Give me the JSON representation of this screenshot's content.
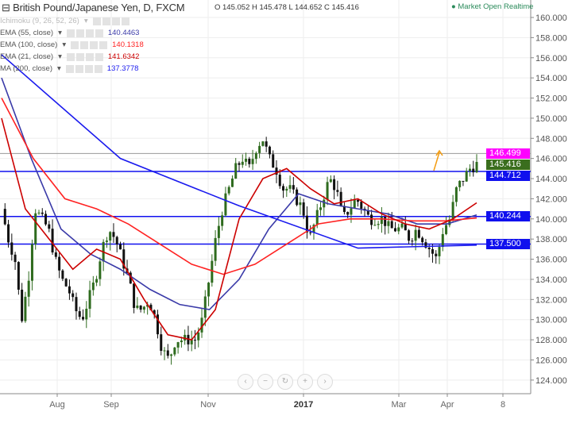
{
  "header": {
    "title": "British Pound/Japanese Yen, D, FXCM",
    "ohlc": "O 145.052 H 145.478 L 144.652 C 145.416",
    "status": "Market Open",
    "realtime": "Realtime"
  },
  "legend": [
    {
      "label": "Ichimoku (9, 26, 52, 26)",
      "value": "",
      "color": "#bbbbbb"
    },
    {
      "label": "EMA (55, close)",
      "value": "140.4463",
      "color": "#3a3aa8"
    },
    {
      "label": "EMA (100, close)",
      "value": "140.1318",
      "color": "#ff2222"
    },
    {
      "label": "EMA (21, close)",
      "value": "141.6342",
      "color": "#cc0000"
    },
    {
      "label": "MA (200, close)",
      "value": "137.3778",
      "color": "#1a1aee"
    }
  ],
  "nav_buttons": [
    "‹",
    "−",
    "↻",
    "+",
    "›"
  ],
  "price_tags": [
    {
      "value": "146.499",
      "price": 146.499,
      "bg": "#ff00ff",
      "line": "#999999"
    },
    {
      "value": "145.416",
      "price": 145.416,
      "bg": "#3a6e1e",
      "line": null
    },
    {
      "value": "144.712",
      "price": 144.712,
      "bg": "#1010ee",
      "line": "#1010ee"
    },
    {
      "value": "140.244",
      "price": 140.244,
      "bg": "#1010ee",
      "line": "#1010ee"
    },
    {
      "value": "137.500",
      "price": 137.5,
      "bg": "#1010ee",
      "line": "#1010ee"
    }
  ],
  "chart_data": {
    "type": "candlestick",
    "ylim": [
      123,
      161
    ],
    "y_ticks": [
      124,
      126,
      128,
      130,
      132,
      134,
      136,
      138,
      140,
      142,
      144,
      146,
      148,
      150,
      152,
      154,
      156,
      158,
      160
    ],
    "x_ticks": [
      "Aug",
      "Sep",
      "Nov",
      "2017",
      "Mar",
      "Apr",
      "8"
    ],
    "grid": true,
    "closes": [
      141,
      138,
      136,
      130,
      134,
      141,
      140,
      139,
      136,
      134,
      133,
      131,
      130,
      132,
      134,
      137,
      139,
      138,
      136,
      134,
      131,
      131,
      132,
      130,
      127,
      126,
      128,
      128,
      128,
      128,
      130,
      134,
      138,
      141,
      143,
      145,
      146,
      145,
      147,
      148,
      146,
      145,
      143,
      143,
      142,
      141,
      138,
      140,
      142,
      144,
      143,
      140,
      141,
      142,
      141,
      140,
      140,
      140,
      139,
      139,
      139,
      138,
      139,
      138,
      137,
      136,
      139,
      140,
      143,
      144,
      145,
      145.416
    ],
    "series": [
      {
        "name": "EMA (55, close)",
        "color": "#3a3aa8",
        "values": [
          154,
          146,
          139,
          136.5,
          135,
          133,
          131.5,
          131,
          134,
          139,
          142.5,
          141.5,
          141,
          140.5,
          139.5,
          139.5,
          140.4
        ]
      },
      {
        "name": "EMA (100, close)",
        "color": "#ff2222",
        "values": [
          152,
          146,
          142,
          141,
          139.5,
          137.5,
          135.5,
          134.5,
          135.5,
          137.5,
          139.5,
          140,
          140,
          139.8,
          139.8,
          140.1
        ]
      },
      {
        "name": "EMA (21, close)",
        "color": "#cc0000",
        "values": [
          150,
          141,
          138,
          135,
          137,
          136,
          132,
          128.5,
          128,
          131,
          140,
          144,
          145,
          143,
          141.5,
          142,
          140.5,
          139.5,
          139,
          140,
          141.6
        ]
      },
      {
        "name": "MA (200, close)",
        "color": "#1a1aee",
        "values": [
          156.3,
          146,
          141.3,
          137.1,
          137.4
        ]
      }
    ],
    "up_color": "#2e6b1e",
    "down_color": "#111111"
  }
}
